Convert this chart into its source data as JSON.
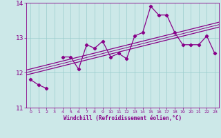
{
  "xlabel": "Windchill (Refroidissement éolien,°C)",
  "bg_color": "#cce8e8",
  "line_color": "#880088",
  "grid_color": "#99cccc",
  "hours": [
    0,
    1,
    2,
    3,
    4,
    5,
    6,
    7,
    8,
    9,
    10,
    11,
    12,
    13,
    14,
    15,
    16,
    17,
    18,
    19,
    20,
    21,
    22,
    23
  ],
  "windchill": [
    11.8,
    11.65,
    11.55,
    null,
    12.45,
    12.45,
    12.1,
    12.8,
    12.7,
    12.9,
    12.45,
    12.55,
    12.4,
    13.05,
    13.15,
    13.9,
    13.65,
    13.65,
    13.15,
    12.8,
    12.8,
    12.8,
    13.05,
    12.55
  ],
  "ylim": [
    11.0,
    14.0
  ],
  "xlim": [
    -0.5,
    23.5
  ],
  "yticks": [
    11,
    12,
    13,
    14
  ],
  "xticks": [
    0,
    1,
    2,
    3,
    4,
    5,
    6,
    7,
    8,
    9,
    10,
    11,
    12,
    13,
    14,
    15,
    16,
    17,
    18,
    19,
    20,
    21,
    22,
    23
  ],
  "trend_offsets": [
    0.0,
    0.07,
    -0.07
  ]
}
